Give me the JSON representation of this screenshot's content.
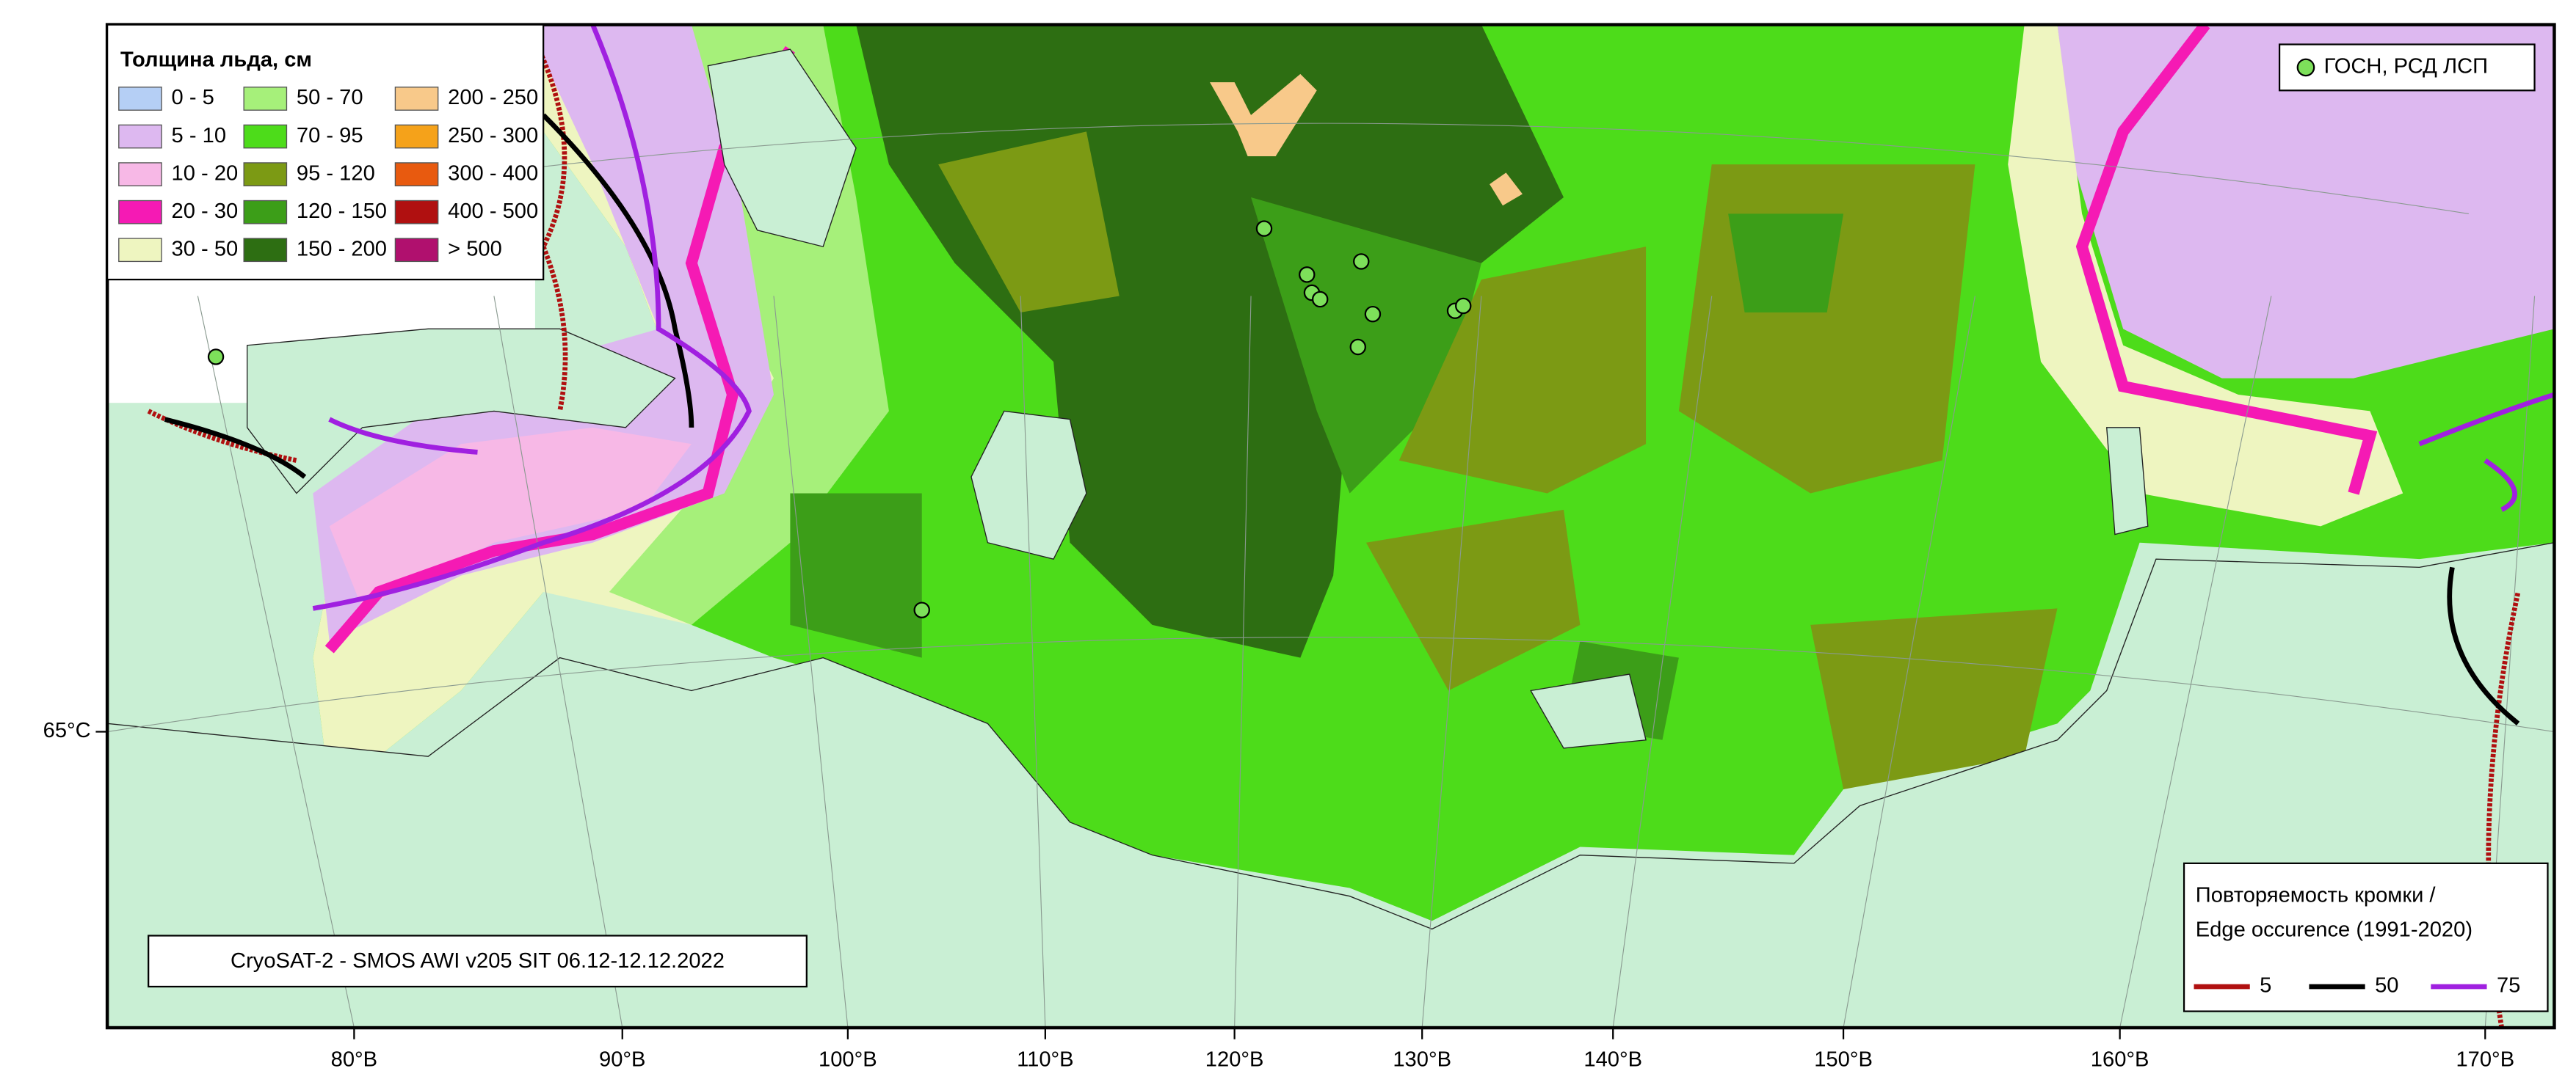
{
  "legend": {
    "title": "Толщина льда, см",
    "classes": [
      {
        "label": "0 - 5",
        "color": "#b5cff5"
      },
      {
        "label": "5 - 10",
        "color": "#ddb8f0"
      },
      {
        "label": "10 - 20",
        "color": "#f7b8e6"
      },
      {
        "label": "20 - 30",
        "color": "#f51ab4"
      },
      {
        "label": "30 - 50",
        "color": "#eef5c0"
      },
      {
        "label": "50 - 70",
        "color": "#a6f07a"
      },
      {
        "label": "70 - 95",
        "color": "#4ddc1a"
      },
      {
        "label": "95 - 120",
        "color": "#7c9a14"
      },
      {
        "label": "120 - 150",
        "color": "#3c9e18"
      },
      {
        "label": "150 - 200",
        "color": "#2d6e12"
      },
      {
        "label": "200 - 250",
        "color": "#f8c98a"
      },
      {
        "label": "250 - 300",
        "color": "#f5a21a"
      },
      {
        "label": "300 - 400",
        "color": "#e85a0f"
      },
      {
        "label": "400 - 500",
        "color": "#b01010"
      },
      {
        "label": "> 500",
        "color": "#b0106e"
      }
    ]
  },
  "stations": {
    "label": "ГОСН, РСД ЛСП",
    "color": "#7de05a"
  },
  "edge_legend": {
    "title": [
      "Повторяемость кромки /",
      "Edge occurence (1991-2020)"
    ],
    "items": [
      {
        "label": "5",
        "color": "#b01010"
      },
      {
        "label": "50",
        "color": "#000000"
      },
      {
        "label": "75",
        "color": "#a020e0"
      }
    ]
  },
  "caption": "CryoSAT-2 - SMOS AWI v205 SIT 06.12-12.12.2022",
  "longitude_labels": [
    "80°В",
    "90°В",
    "100°В",
    "110°В",
    "120°В",
    "130°В",
    "140°В",
    "150°В",
    "160°В",
    "170°В"
  ],
  "latitude_labels": [
    "65°С"
  ]
}
